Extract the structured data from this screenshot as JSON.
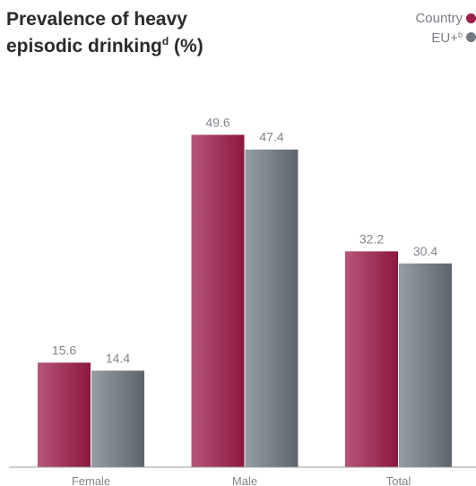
{
  "chart_data": {
    "type": "bar",
    "title": "Prevalence of heavy episodic drinking",
    "title_line1": "Prevalence of heavy",
    "title_line2": "episodic drinking",
    "title_sup": "d",
    "title_suffix": " (%)",
    "categories": [
      "Female",
      "Male",
      "Total"
    ],
    "series": [
      {
        "name": "Country",
        "legend_label": "Country",
        "legend_sup": "",
        "color": "#9c1d47",
        "values": [
          15.6,
          49.6,
          32.2
        ]
      },
      {
        "name": "EU+",
        "legend_label": "EU+",
        "legend_sup": "b",
        "color": "#737980",
        "values": [
          14.4,
          47.4,
          30.4
        ]
      }
    ],
    "ylim": [
      0,
      57
    ],
    "grid": false,
    "legend_position": "top-right",
    "data_labels": true
  }
}
